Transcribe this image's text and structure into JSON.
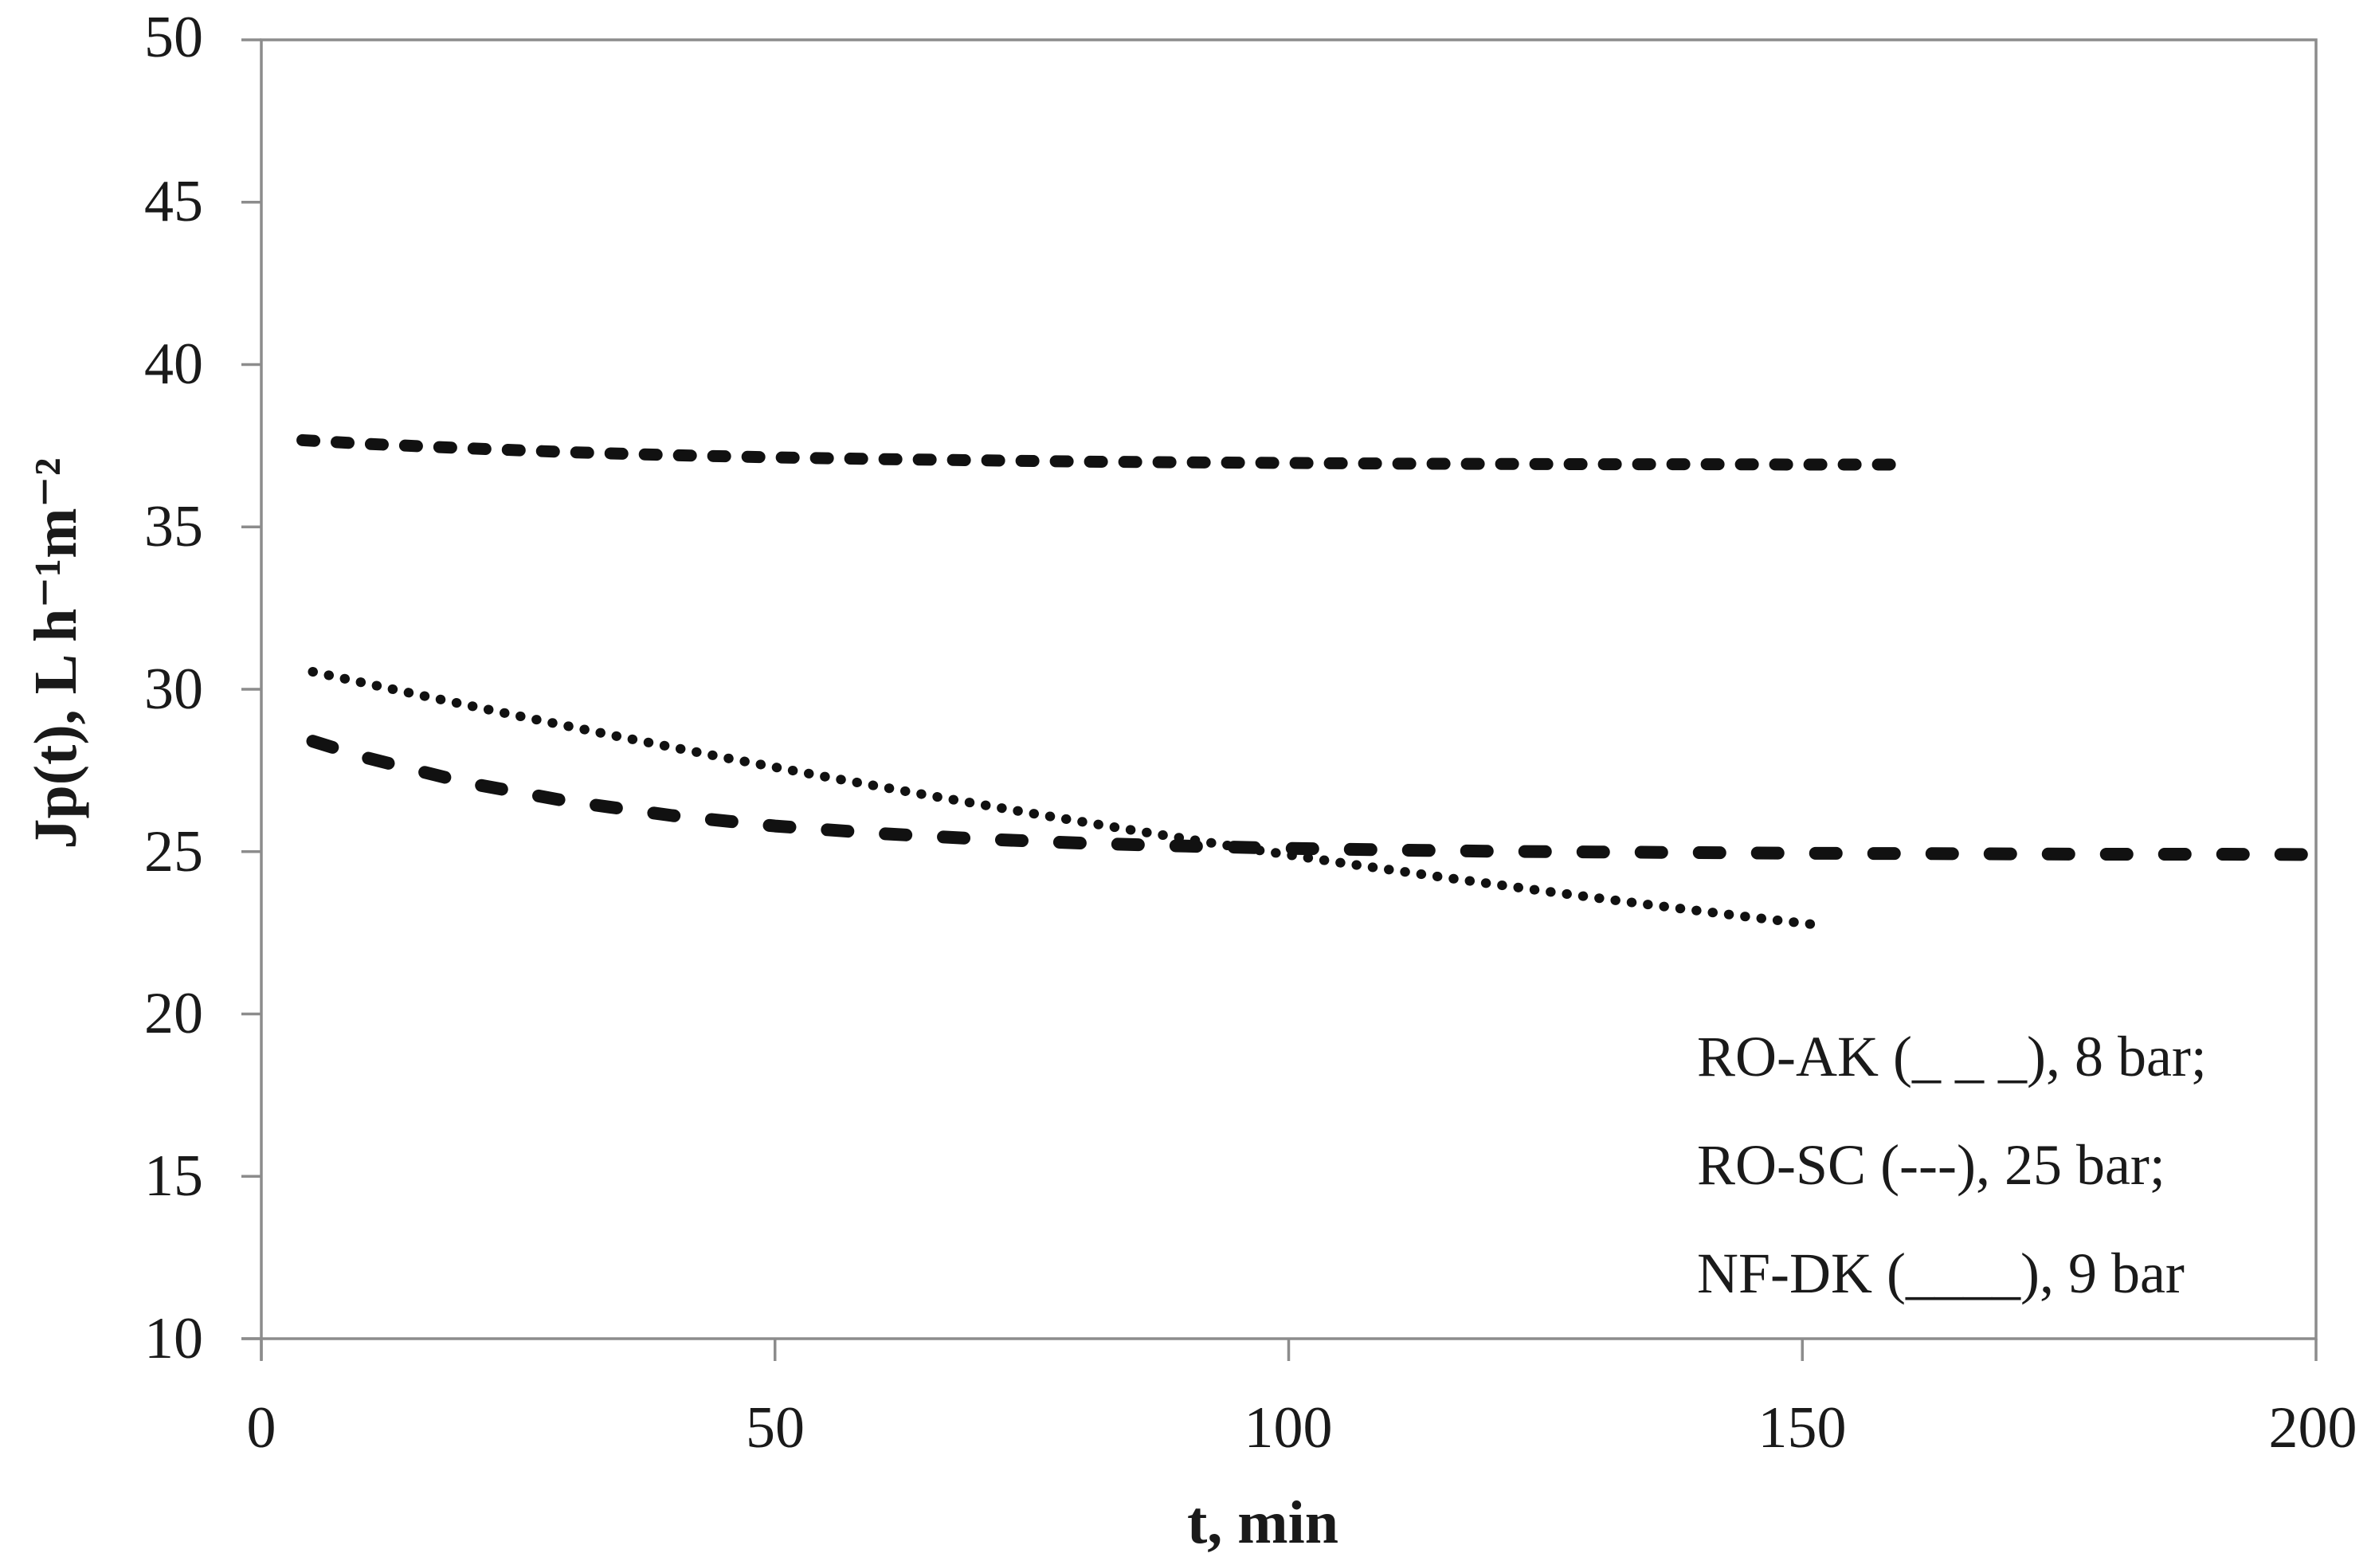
{
  "chart_data": {
    "type": "line",
    "title": "",
    "xlabel": "t, min",
    "ylabel": "Jp(t), L h⁻¹m⁻²",
    "xlim": [
      0,
      200
    ],
    "ylim": [
      10,
      50
    ],
    "xticks": [
      0,
      50,
      100,
      150,
      200
    ],
    "yticks": [
      10,
      15,
      20,
      25,
      30,
      35,
      40,
      45,
      50
    ],
    "grid": false,
    "frame": true,
    "legend_position": "lower-right-inside",
    "legend": [
      {
        "text": "RO-AK (_ _ _), 8 bar;"
      },
      {
        "text": "RO-SC (---), 25 bar;"
      },
      {
        "text": "NF-DK (____), 9 bar"
      }
    ],
    "series": [
      {
        "name": "RO-SC",
        "pressure": "25 bar",
        "style": "short-dash",
        "x": [
          4,
          10,
          20,
          30,
          40,
          50,
          60,
          70,
          80,
          90,
          100,
          110,
          120,
          130,
          140,
          150,
          160
        ],
        "y": [
          37.67,
          37.56,
          37.42,
          37.3,
          37.21,
          37.14,
          37.09,
          37.05,
          37.01,
          36.99,
          36.97,
          36.95,
          36.94,
          36.93,
          36.93,
          36.92,
          36.92
        ]
      },
      {
        "name": "NF-DK",
        "pressure": "9 bar",
        "style": "dotted",
        "x": [
          5,
          15,
          25,
          35,
          45,
          55,
          65,
          75,
          85,
          95,
          105,
          115,
          125,
          135,
          145,
          151
        ],
        "y": [
          30.54,
          29.85,
          29.18,
          28.53,
          27.9,
          27.3,
          26.73,
          26.18,
          25.65,
          25.14,
          24.66,
          24.21,
          23.78,
          23.37,
          22.98,
          22.76
        ]
      },
      {
        "name": "RO-AK",
        "pressure": "8 bar",
        "style": "long-dash",
        "x": [
          5,
          10,
          20,
          30,
          40,
          50,
          60,
          70,
          80,
          90,
          100,
          110,
          120,
          130,
          140,
          150,
          160,
          170,
          180,
          190,
          199
        ],
        "y": [
          28.4,
          27.91,
          27.12,
          26.54,
          26.11,
          25.79,
          25.56,
          25.39,
          25.26,
          25.17,
          25.1,
          25.05,
          25.01,
          24.99,
          24.97,
          24.95,
          24.94,
          24.93,
          24.92,
          24.92,
          24.91
        ]
      }
    ],
    "colors": {
      "line": "#111111",
      "axis": "#8c8c8c",
      "text": "#1a1a1a",
      "background": "#ffffff"
    }
  }
}
